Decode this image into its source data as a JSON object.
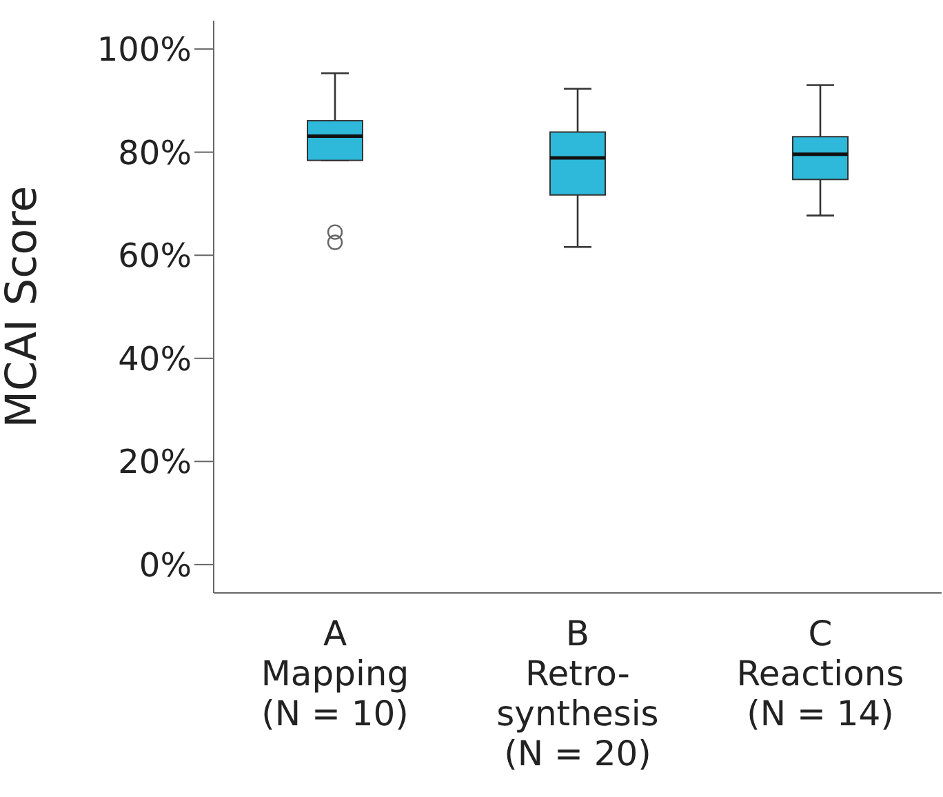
{
  "chart_data": {
    "type": "box",
    "ylabel": "MCAI Score",
    "categories": [
      "A\nMapping\n(N = 10)",
      "B\nRetro-\nsynthesis\n(N = 20)",
      "C\nReactions\n(N = 14)"
    ],
    "color": "#2eb8d9",
    "boxes": [
      {
        "low": 78.4,
        "q1": 78.4,
        "median": 83.1,
        "q3": 86.1,
        "high": 95.3,
        "outliers": [
          64.5,
          62.5
        ]
      },
      {
        "low": 61.6,
        "q1": 71.7,
        "median": 78.9,
        "q3": 83.9,
        "high": 92.3
      },
      {
        "low": 67.7,
        "q1": 74.7,
        "median": 79.6,
        "q3": 83.0,
        "high": 93.0
      }
    ],
    "ylim": [
      -5.5,
      105.5
    ],
    "yticks": [
      {
        "value": 0,
        "label": "0%"
      },
      {
        "value": 20,
        "label": "20%"
      },
      {
        "value": 40,
        "label": "40%"
      },
      {
        "value": 60,
        "label": "60%"
      },
      {
        "value": 80,
        "label": "80%"
      },
      {
        "value": 100,
        "label": "100%"
      }
    ],
    "grid": false,
    "legend": false,
    "marker": "circle"
  }
}
